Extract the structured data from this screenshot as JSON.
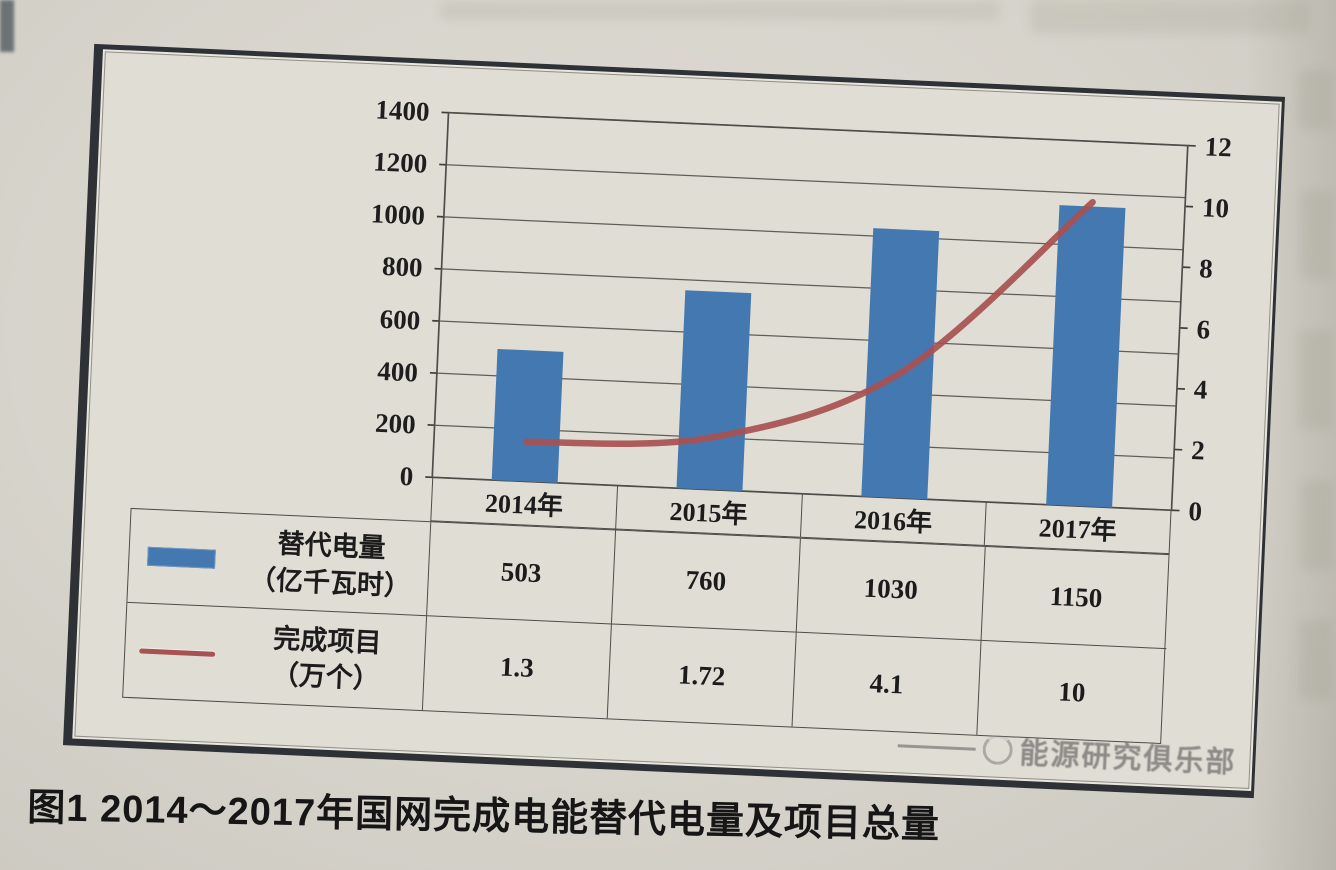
{
  "figure": {
    "caption": "图1 2014～2017年国网完成电能替代电量及项目总量",
    "watermark_text": "能源研究俱乐部"
  },
  "chart_data": {
    "type": "bar",
    "subtype": "combo-bar-line-dual-axis",
    "title": "",
    "categories": [
      "2014年",
      "2015年",
      "2016年",
      "2017年"
    ],
    "series": [
      {
        "name": "替代电量",
        "unit": "（亿千瓦时）",
        "type": "bar",
        "axis": "left",
        "color": "#4379b0",
        "values": [
          503,
          760,
          1030,
          1150
        ]
      },
      {
        "name": "完成项目",
        "unit": "（万个）",
        "type": "line",
        "axis": "right",
        "color": "#a85252",
        "values": [
          1.3,
          1.72,
          4.1,
          10
        ]
      }
    ],
    "axes": {
      "left": {
        "min": 0,
        "max": 1400,
        "step": 200,
        "ticks": [
          "1400",
          "1200",
          "1000",
          "800",
          "600",
          "400",
          "200",
          "0"
        ]
      },
      "right": {
        "min": 0,
        "max": 12,
        "step": 2,
        "ticks": [
          "12",
          "10",
          "8",
          "6",
          "4",
          "2",
          "0"
        ]
      }
    },
    "grid": true,
    "legend_position": "data-table-left",
    "data_table": true
  }
}
